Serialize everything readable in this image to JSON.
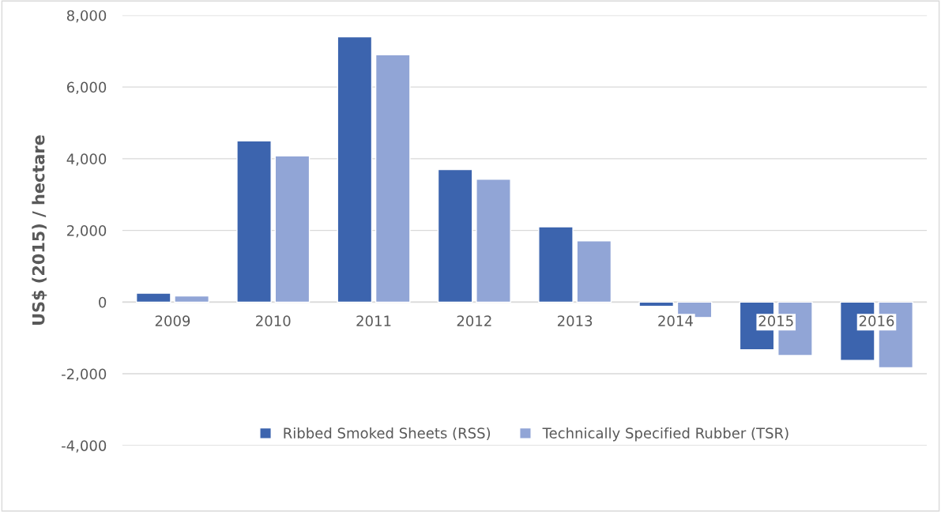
{
  "chart_data": {
    "type": "bar",
    "ylabel": "US$ (2015) / hectare",
    "categories": [
      "2009",
      "2010",
      "2011",
      "2012",
      "2013",
      "2014",
      "2015",
      "2016"
    ],
    "series": [
      {
        "name": "Ribbed Smoked Sheets (RSS)",
        "color": "#3c64ae",
        "values": [
          250,
          4500,
          7400,
          3700,
          2100,
          -120,
          -1330,
          -1630
        ]
      },
      {
        "name": "Technically Specified Rubber (TSR)",
        "color": "#91a5d6",
        "values": [
          170,
          4080,
          6900,
          3430,
          1710,
          -430,
          -1490,
          -1830
        ]
      }
    ],
    "ylim": [
      -4000,
      8000
    ],
    "yticks": [
      {
        "value": -4000,
        "label": "-4,000"
      },
      {
        "value": -2000,
        "label": "-2,000"
      },
      {
        "value": 0,
        "label": "0"
      },
      {
        "value": 2000,
        "label": "2,000"
      },
      {
        "value": 4000,
        "label": "4,000"
      },
      {
        "value": 6000,
        "label": "6,000"
      },
      {
        "value": 8000,
        "label": "8,000"
      }
    ],
    "grid": "y",
    "legend": "bottom"
  }
}
